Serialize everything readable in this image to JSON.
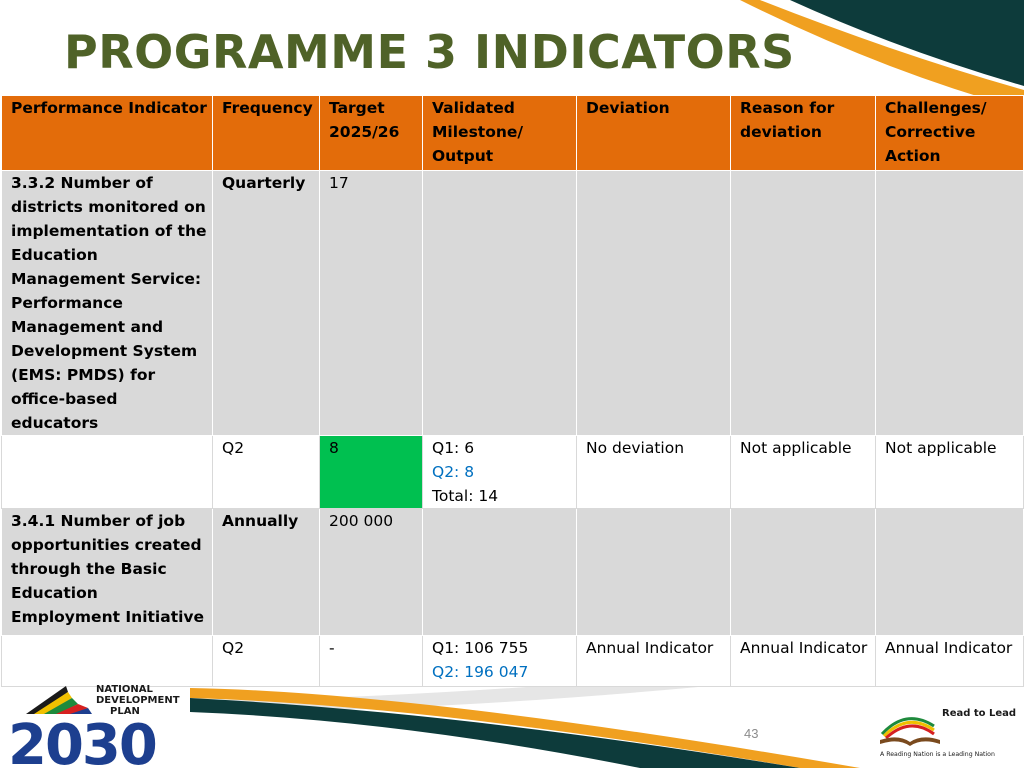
{
  "slide": {
    "title": "PROGRAMME 3 INDICATORS",
    "page_number": "43"
  },
  "table": {
    "headers": {
      "indicator": "Performance Indicator",
      "frequency": "Frequency",
      "target": "Target 2025/26",
      "milestone": "Validated Milestone/ Output",
      "deviation": "Deviation",
      "reason": "Reason for deviation",
      "challenges": "Challenges/ Corrective Action"
    },
    "rows": [
      {
        "indicator": "3.3.2 Number of districts monitored on implementation of the Education Management Service: Performance Management and Development System (EMS: PMDS) for office-based educators",
        "frequency": "Quarterly",
        "target": "17"
      },
      {
        "frequency": "Q2",
        "target": "8",
        "milestone": {
          "q1": "Q1: 6",
          "q2": "Q2: 8",
          "total": "Total: 14"
        },
        "deviation": "No deviation",
        "reason": "Not applicable",
        "challenges": "Not applicable"
      },
      {
        "indicator": "3.4.1 Number of job opportunities created through the Basic Education Employment Initiative",
        "frequency": "Annually",
        "target": "200 000"
      },
      {
        "frequency": "Q2",
        "target": "-",
        "milestone": {
          "q1": "Q1: 106 755",
          "q2": "Q2: 196 047"
        },
        "deviation": "Annual Indicator",
        "reason": "Annual Indicator",
        "challenges": "Annual Indicator"
      }
    ]
  },
  "logos": {
    "ndp": {
      "line1": "NATIONAL",
      "line2": "DEVELOPMENT",
      "line3": "PLAN",
      "year": "2030"
    },
    "read_to_lead": {
      "name": "Read to Lead",
      "tagline": "A Reading Nation is a Leading Nation"
    }
  },
  "colors": {
    "title": "#4f6228",
    "header_bg": "#e36c0a",
    "grey_row": "#d9d9d9",
    "achieved": "#00c050",
    "q2_text": "#0070c0",
    "dark_teal": "#0d3b3b",
    "accent_orange": "#f0a020"
  }
}
